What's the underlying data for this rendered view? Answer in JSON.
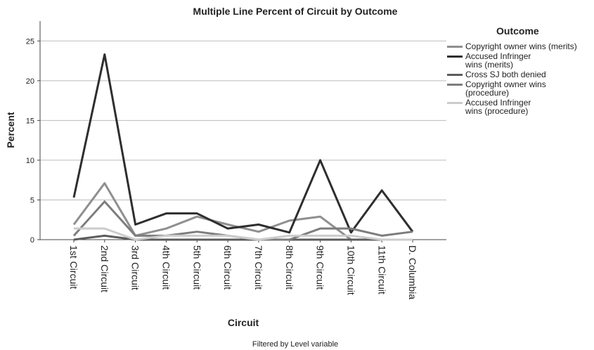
{
  "chart_data": {
    "type": "line",
    "title": "Multiple Line Percent of Circuit by Outcome",
    "x_label": "Circuit",
    "y_label": "Percent",
    "footnote": "Filtered by Level variable",
    "legend_title": "Outcome",
    "legend_position": "right",
    "categories": [
      "1st Circuit",
      "2nd Circuit",
      "3rd Circuit",
      "4th Circuit",
      "5th Circuit",
      "6th Circuit",
      "7th Circuit",
      "8th Circuit",
      "9th Circuit",
      "10th Circuit",
      "11th Circuit",
      "D. Columbia"
    ],
    "series": [
      {
        "name": "Copyright owner wins (merits)",
        "color": "#8f8f8f",
        "values": [
          1.9,
          7.1,
          0.5,
          1.4,
          2.9,
          1.9,
          1.0,
          2.4,
          2.9,
          0.0,
          0.0,
          0.0
        ]
      },
      {
        "name": "Accused Infringer wins (merits)",
        "color": "#2e2e2e",
        "values": [
          5.3,
          23.3,
          1.9,
          3.3,
          3.3,
          1.4,
          1.9,
          0.9,
          10.0,
          0.9,
          6.2,
          1.0
        ]
      },
      {
        "name": "Cross SJ both denied",
        "color": "#5c5c5c",
        "values": [
          0.0,
          0.5,
          0.0,
          0.0,
          0.0,
          0.0,
          0.0,
          0.0,
          0.0,
          0.0,
          0.0,
          0.0
        ]
      },
      {
        "name": "Copyright owner wins (procedure)",
        "color": "#7d7d7d",
        "values": [
          0.5,
          4.8,
          0.5,
          0.5,
          1.0,
          0.5,
          0.0,
          0.0,
          1.4,
          1.4,
          0.5,
          1.0
        ]
      },
      {
        "name": "Accused Infringer wins (procedure)",
        "color": "#cccccc",
        "values": [
          1.4,
          1.4,
          0.0,
          0.5,
          0.5,
          0.5,
          0.0,
          0.5,
          0.5,
          0.5,
          0.0,
          0.0
        ]
      }
    ],
    "ylim": [
      0,
      27.5
    ],
    "yticks": [
      0,
      5,
      10,
      15,
      20,
      25
    ],
    "grid": true
  }
}
